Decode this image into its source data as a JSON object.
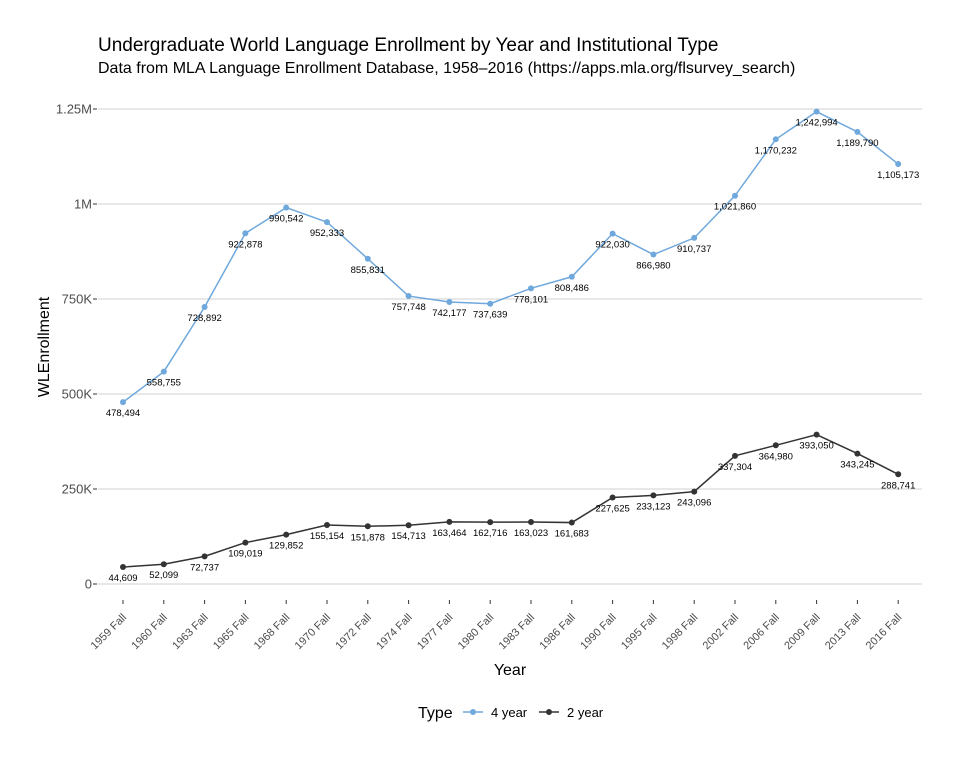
{
  "chart_data": {
    "type": "line",
    "title": "Undergraduate World Language Enrollment by Year and Institutional Type",
    "subtitle": "Data from MLA Language Enrollment Database, 1958–2016 (https://apps.mla.org/flsurvey_search)",
    "xlabel": "Year",
    "ylabel": "WLEnrollment",
    "categories": [
      "1959 Fall",
      "1960 Fall",
      "1963 Fall",
      "1965 Fall",
      "1968 Fall",
      "1970 Fall",
      "1972 Fall",
      "1974 Fall",
      "1977 Fall",
      "1980 Fall",
      "1983 Fall",
      "1986 Fall",
      "1990 Fall",
      "1995 Fall",
      "1998 Fall",
      "2002 Fall",
      "2006 Fall",
      "2009 Fall",
      "2013 Fall",
      "2016 Fall"
    ],
    "ylim": [
      0,
      1250000
    ],
    "yticks": [
      0,
      250000,
      500000,
      750000,
      1000000,
      1250000
    ],
    "ytick_labels": [
      "0",
      "250K",
      "500K",
      "750K",
      "1M",
      "1.25M"
    ],
    "grid": true,
    "legend": {
      "title": "Type",
      "position": "bottom"
    },
    "series": [
      {
        "name": "4 year",
        "color": "#6fa8dc",
        "values": [
          478494,
          558755,
          728892,
          922878,
          990542,
          952333,
          855831,
          757748,
          742177,
          737639,
          778101,
          808486,
          922030,
          866980,
          910737,
          1021860,
          1170232,
          1242994,
          1189790,
          1105173
        ],
        "labels": [
          "478,494",
          "558,755",
          "728,892",
          "922,878",
          "990,542",
          "952,333",
          "855,831",
          "757,748",
          "742,177",
          "737,639",
          "778,101",
          "808,486",
          "922,030",
          "866,980",
          "910,737",
          "1,021,860",
          "1,170,232",
          "1,242,994",
          "1,189,790",
          "1,105,173"
        ]
      },
      {
        "name": "2 year",
        "color": "#333333",
        "values": [
          44609,
          52099,
          72737,
          109019,
          129852,
          155154,
          151878,
          154713,
          163464,
          162716,
          163023,
          161683,
          227625,
          233123,
          243096,
          337304,
          364980,
          393050,
          343245,
          288741
        ],
        "labels": [
          "44,609",
          "52,099",
          "72,737",
          "109,019",
          "129,852",
          "155,154",
          "151,878",
          "154,713",
          "163,464",
          "162,716",
          "163,023",
          "161,683",
          "227,625",
          "233,123",
          "243,096",
          "337,304",
          "364,980",
          "393,050",
          "343,245",
          "288,741"
        ]
      }
    ]
  }
}
